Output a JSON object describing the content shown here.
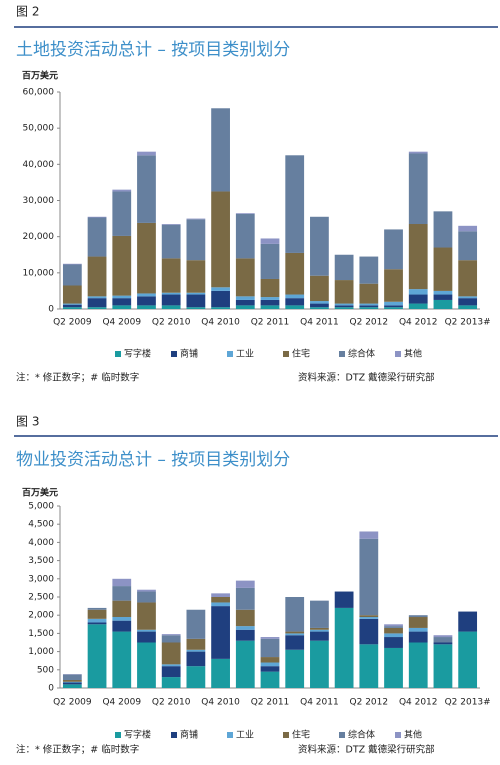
{
  "chart_data": [
    {
      "type": "bar",
      "stacked": true,
      "figure_label": "图 2",
      "title": "土地投资活动总计 – 按项目类别划分",
      "unit_label": "百万美元",
      "note": "注：* 修正数字；# 临时数字",
      "source": "资料来源：DTZ 戴德梁行研究部",
      "categories": [
        "Q2 2009",
        null,
        "Q4 2009",
        null,
        "Q2 2010",
        null,
        "Q4 2010",
        null,
        "Q2 2011",
        null,
        "Q4 2011",
        null,
        "Q2 2012",
        null,
        "Q4 2012",
        null,
        "Q2 2013#"
      ],
      "ylim": [
        0,
        60000
      ],
      "yticks": [
        0,
        {
          "value": 10000,
          "label": "10,000"
        },
        {
          "value": 20000,
          "label": "20,000"
        },
        {
          "value": 30000,
          "label": "30,000"
        },
        {
          "value": 40000,
          "label": "40,000"
        },
        {
          "value": 50000,
          "label": "50,000"
        },
        {
          "value": 60000,
          "label": "60,000"
        }
      ],
      "series": [
        {
          "name": "写字楼",
          "color": "#1a9ba0",
          "values": [
            500,
            500,
            1000,
            1000,
            1000,
            500,
            500,
            1000,
            1000,
            1000,
            500,
            500,
            500,
            500,
            1500,
            2500,
            1000
          ]
        },
        {
          "name": "商铺",
          "color": "#1f3f7f",
          "values": [
            700,
            2500,
            2000,
            2500,
            3000,
            3500,
            4500,
            1500,
            1500,
            2000,
            1000,
            500,
            500,
            500,
            2500,
            1500,
            2000
          ]
        },
        {
          "name": "工业",
          "color": "#5ea6d6",
          "values": [
            300,
            500,
            700,
            800,
            500,
            500,
            1000,
            1000,
            800,
            1000,
            700,
            500,
            500,
            1000,
            1500,
            1000,
            500
          ]
        },
        {
          "name": "住宅",
          "color": "#7a6a45",
          "values": [
            5000,
            11000,
            16500,
            19500,
            9500,
            9000,
            26500,
            10500,
            5000,
            11500,
            7000,
            6500,
            5500,
            9000,
            18000,
            12000,
            10000
          ]
        },
        {
          "name": "综合体",
          "color": "#667f9f",
          "values": [
            5800,
            10800,
            12300,
            18700,
            9300,
            11300,
            23000,
            12300,
            9700,
            27000,
            16300,
            7000,
            7500,
            11000,
            19500,
            10000,
            8000
          ]
        },
        {
          "name": "其他",
          "color": "#8c93c4",
          "values": [
            200,
            200,
            500,
            1000,
            200,
            200,
            0,
            200,
            1500,
            0,
            0,
            0,
            0,
            0,
            500,
            0,
            1500
          ]
        }
      ]
    },
    {
      "type": "bar",
      "stacked": true,
      "figure_label": "图 3",
      "title": "物业投资活动总计 – 按项目类别划分",
      "unit_label": "百万美元",
      "note": "注：* 修正数字；# 临时数字",
      "source": "资料来源：DTZ 戴德梁行研究部",
      "categories": [
        "Q2 2009",
        null,
        "Q4 2009",
        null,
        "Q2 2010",
        null,
        "Q4 2010",
        null,
        "Q2 2011",
        null,
        "Q4 2011",
        null,
        "Q2 2012",
        null,
        "Q4 2012",
        null,
        "Q2 2013#"
      ],
      "ylim": [
        0,
        5000
      ],
      "yticks": [
        0,
        500,
        {
          "value": 1000,
          "label": "1,000"
        },
        {
          "value": 1500,
          "label": "1,500"
        },
        {
          "value": 2000,
          "label": "2,000"
        },
        {
          "value": 2500,
          "label": "2,500"
        },
        {
          "value": 3000,
          "label": "3,000"
        },
        {
          "value": 3500,
          "label": "3,500"
        },
        {
          "value": 4000,
          "label": "4,000"
        },
        {
          "value": 4500,
          "label": "4,500"
        },
        {
          "value": 5000,
          "label": "5,000"
        }
      ],
      "series": [
        {
          "name": "写字楼",
          "color": "#1a9ba0",
          "values": [
            100,
            1750,
            1550,
            1250,
            300,
            600,
            800,
            1300,
            450,
            1050,
            1300,
            2200,
            1200,
            1100,
            1250,
            1200,
            1550
          ]
        },
        {
          "name": "商铺",
          "color": "#1f3f7f",
          "values": [
            50,
            50,
            300,
            300,
            300,
            400,
            1450,
            300,
            150,
            400,
            250,
            450,
            700,
            300,
            300,
            50,
            550
          ]
        },
        {
          "name": "工业",
          "color": "#5ea6d6",
          "values": [
            20,
            100,
            100,
            50,
            50,
            50,
            100,
            100,
            100,
            50,
            50,
            0,
            50,
            100,
            100,
            0,
            0
          ]
        },
        {
          "name": "住宅",
          "color": "#7a6a45",
          "values": [
            50,
            250,
            450,
            750,
            600,
            300,
            150,
            450,
            150,
            50,
            50,
            0,
            50,
            150,
            300,
            0,
            0
          ]
        },
        {
          "name": "综合体",
          "color": "#667f9f",
          "values": [
            150,
            50,
            400,
            300,
            200,
            800,
            0,
            600,
            500,
            950,
            750,
            0,
            2100,
            50,
            50,
            150,
            0
          ]
        },
        {
          "name": "其他",
          "color": "#8c93c4",
          "values": [
            10,
            0,
            200,
            50,
            30,
            0,
            100,
            200,
            50,
            0,
            0,
            0,
            200,
            50,
            0,
            50,
            0
          ]
        }
      ]
    }
  ]
}
